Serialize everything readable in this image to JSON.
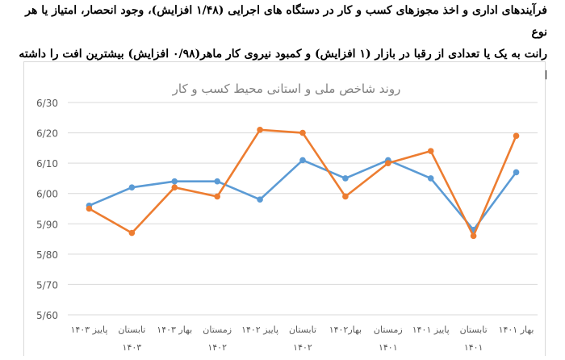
{
  "document": {
    "line1": "فرآیندهای اداری و اخذ مجوزهای کسب و کار در دستگاه های اجرایی (۱/۴۸ افزایش)، وجود انحصار، امتیاز یا هر نوع",
    "line2": "رانت به یک یا تعدادی از رقبا در بازار (۱ افزایش) و کمبود نیروی کار ماهر(۰/۹۸ افزایش) بیشترین افت را داشته اند."
  },
  "chart_data": {
    "type": "line",
    "title": "روند شاخص ملی و استانی محیط کسب و کار",
    "xlabel": "",
    "ylabel": "",
    "categories": [
      [
        "بهار ۱۴۰۱"
      ],
      [
        "تابستان",
        "۱۴۰۱"
      ],
      [
        "پاییز ۱۴۰۱"
      ],
      [
        "زمستان",
        "۱۴۰۱"
      ],
      [
        "بهار۱۴۰۲"
      ],
      [
        "تابستان",
        "۱۴۰۲"
      ],
      [
        "پاییز ۱۴۰۲"
      ],
      [
        "زمستان",
        "۱۴۰۲"
      ],
      [
        "بهار ۱۴۰۳"
      ],
      [
        "تابستان",
        "۱۴۰۳"
      ],
      [
        "پاییز ۱۴۰۳"
      ]
    ],
    "series": [
      {
        "color": "#5b9bd5",
        "values": [
          6.07,
          5.88,
          6.05,
          6.11,
          6.05,
          6.11,
          5.98,
          6.04,
          6.04,
          6.02,
          5.96
        ]
      },
      {
        "color": "#ed7d31",
        "values": [
          6.19,
          5.86,
          6.14,
          6.1,
          5.99,
          6.2,
          6.21,
          5.99,
          6.02,
          5.87,
          5.95
        ]
      }
    ],
    "ylim": [
      5.6,
      6.3
    ],
    "yticks": [
      6.3,
      6.2,
      6.1,
      6.0,
      5.9,
      5.8,
      5.7,
      5.6
    ],
    "ytick_labels": [
      "6/30",
      "6/20",
      "6/10",
      "6/00",
      "5/90",
      "5/80",
      "5/70",
      "5/60"
    ],
    "grid": true,
    "legend": "none"
  }
}
